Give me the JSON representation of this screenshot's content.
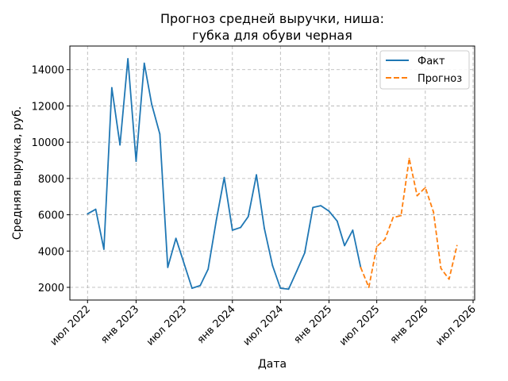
{
  "chart_data": {
    "type": "line",
    "title_lines": [
      "Прогноз средней выручки, ниша:",
      "губка для обуви черная"
    ],
    "xlabel": "Дата",
    "ylabel": "Средняя выручка, руб.",
    "x_ticks": [
      {
        "date": "2022-07-01",
        "label": "июл 2022"
      },
      {
        "date": "2023-01-01",
        "label": "янв 2023"
      },
      {
        "date": "2023-07-01",
        "label": "июл 2023"
      },
      {
        "date": "2024-01-01",
        "label": "янв 2024"
      },
      {
        "date": "2024-07-01",
        "label": "июл 2024"
      },
      {
        "date": "2025-01-01",
        "label": "янв 2025"
      },
      {
        "date": "2025-07-01",
        "label": "июл 2025"
      },
      {
        "date": "2026-01-01",
        "label": "янв 2026"
      },
      {
        "date": "2026-07-01",
        "label": "июл 2026"
      }
    ],
    "y_ticks": [
      2000,
      4000,
      6000,
      8000,
      10000,
      12000,
      14000
    ],
    "xlim": [
      "2022-04-25",
      "2026-07-07"
    ],
    "ylim": [
      1300,
      15300
    ],
    "grid": true,
    "legend_position": "top-right",
    "series": [
      {
        "name": "Факт",
        "color": "#1f77b4",
        "style": "solid",
        "points": [
          {
            "x": "2022-07-01",
            "y": 6050
          },
          {
            "x": "2022-08-01",
            "y": 6300
          },
          {
            "x": "2022-09-01",
            "y": 4100
          },
          {
            "x": "2022-10-01",
            "y": 13000
          },
          {
            "x": "2022-11-01",
            "y": 9850
          },
          {
            "x": "2022-12-01",
            "y": 14600
          },
          {
            "x": "2023-01-01",
            "y": 8950
          },
          {
            "x": "2023-02-01",
            "y": 14350
          },
          {
            "x": "2023-03-01",
            "y": 12100
          },
          {
            "x": "2023-04-01",
            "y": 10450
          },
          {
            "x": "2023-05-01",
            "y": 3100
          },
          {
            "x": "2023-06-01",
            "y": 4700
          },
          {
            "x": "2023-07-01",
            "y": 3350
          },
          {
            "x": "2023-08-01",
            "y": 1950
          },
          {
            "x": "2023-09-01",
            "y": 2100
          },
          {
            "x": "2023-10-01",
            "y": 3000
          },
          {
            "x": "2023-11-01",
            "y": 5700
          },
          {
            "x": "2023-12-01",
            "y": 8050
          },
          {
            "x": "2024-01-01",
            "y": 5150
          },
          {
            "x": "2024-02-01",
            "y": 5300
          },
          {
            "x": "2024-03-01",
            "y": 5900
          },
          {
            "x": "2024-04-01",
            "y": 8200
          },
          {
            "x": "2024-05-01",
            "y": 5250
          },
          {
            "x": "2024-06-01",
            "y": 3200
          },
          {
            "x": "2024-07-01",
            "y": 1950
          },
          {
            "x": "2024-08-01",
            "y": 1900
          },
          {
            "x": "2024-09-01",
            "y": 2900
          },
          {
            "x": "2024-10-01",
            "y": 3900
          },
          {
            "x": "2024-11-01",
            "y": 6400
          },
          {
            "x": "2024-12-01",
            "y": 6500
          },
          {
            "x": "2025-01-01",
            "y": 6200
          },
          {
            "x": "2025-02-01",
            "y": 5650
          },
          {
            "x": "2025-03-01",
            "y": 4300
          },
          {
            "x": "2025-04-01",
            "y": 5150
          },
          {
            "x": "2025-05-01",
            "y": 3100
          }
        ]
      },
      {
        "name": "Прогноз",
        "color": "#ff7f0e",
        "style": "dashed",
        "points": [
          {
            "x": "2025-05-01",
            "y": 3100
          },
          {
            "x": "2025-06-01",
            "y": 2000
          },
          {
            "x": "2025-07-01",
            "y": 4250
          },
          {
            "x": "2025-08-01",
            "y": 4650
          },
          {
            "x": "2025-09-01",
            "y": 5850
          },
          {
            "x": "2025-10-01",
            "y": 5950
          },
          {
            "x": "2025-11-01",
            "y": 9100
          },
          {
            "x": "2025-12-01",
            "y": 7050
          },
          {
            "x": "2026-01-01",
            "y": 7500
          },
          {
            "x": "2026-02-01",
            "y": 6150
          },
          {
            "x": "2026-03-01",
            "y": 3050
          },
          {
            "x": "2026-04-01",
            "y": 2450
          },
          {
            "x": "2026-05-01",
            "y": 4300
          }
        ]
      }
    ]
  }
}
